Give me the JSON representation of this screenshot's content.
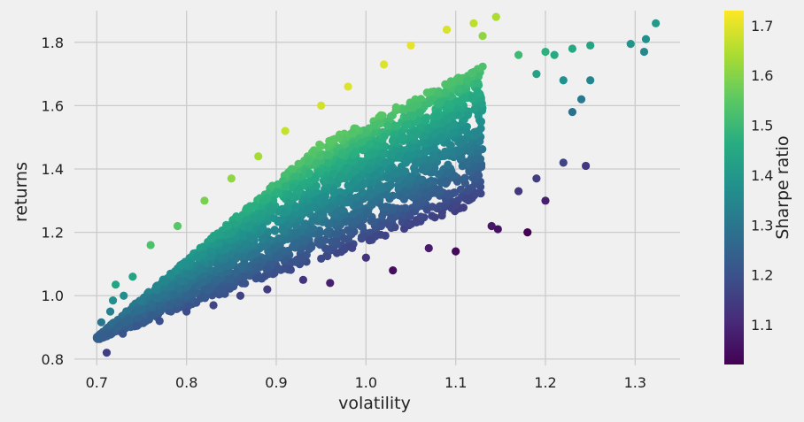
{
  "chart_data": {
    "type": "scatter",
    "title": "",
    "xlabel": "volatility",
    "ylabel": "returns",
    "colorbar_label": "Sharpe ratio",
    "colormap": "viridis",
    "xlim": [
      0.675,
      1.35
    ],
    "ylim": [
      0.78,
      1.9
    ],
    "clim": [
      1.02,
      1.73
    ],
    "x_ticks": [
      0.7,
      0.8,
      0.9,
      1.0,
      1.1,
      1.2,
      1.3
    ],
    "x_tick_labels": [
      "0.7",
      "0.8",
      "0.9",
      "1.0",
      "1.1",
      "1.2",
      "1.3"
    ],
    "y_ticks": [
      0.8,
      1.0,
      1.2,
      1.4,
      1.6,
      1.8
    ],
    "y_tick_labels": [
      "0.8",
      "1.0",
      "1.2",
      "1.4",
      "1.6",
      "1.8"
    ],
    "colorbar_ticks": [
      1.1,
      1.2,
      1.3,
      1.4,
      1.5,
      1.6,
      1.7
    ],
    "colorbar_tick_labels": [
      "1.1",
      "1.2",
      "1.3",
      "1.4",
      "1.5",
      "1.6",
      "1.7"
    ],
    "grid": true,
    "points": [
      {
        "x": 0.702,
        "y": 0.868
      },
      {
        "x": 0.709,
        "y": 0.872
      },
      {
        "x": 0.705,
        "y": 0.916
      },
      {
        "x": 0.711,
        "y": 0.82
      },
      {
        "x": 0.715,
        "y": 0.95
      },
      {
        "x": 0.718,
        "y": 0.985
      },
      {
        "x": 0.721,
        "y": 1.035
      },
      {
        "x": 0.723,
        "y": 0.9
      },
      {
        "x": 0.729,
        "y": 0.88
      },
      {
        "x": 0.73,
        "y": 1.0
      },
      {
        "x": 0.74,
        "y": 1.06
      },
      {
        "x": 0.745,
        "y": 0.905
      },
      {
        "x": 0.76,
        "y": 1.16
      },
      {
        "x": 0.77,
        "y": 0.92
      },
      {
        "x": 0.79,
        "y": 1.22
      },
      {
        "x": 0.8,
        "y": 0.95
      },
      {
        "x": 0.82,
        "y": 1.3
      },
      {
        "x": 0.83,
        "y": 0.97
      },
      {
        "x": 0.85,
        "y": 1.37
      },
      {
        "x": 0.86,
        "y": 1.0
      },
      {
        "x": 0.88,
        "y": 1.44
      },
      {
        "x": 0.89,
        "y": 1.02
      },
      {
        "x": 0.91,
        "y": 1.52
      },
      {
        "x": 0.93,
        "y": 1.05
      },
      {
        "x": 0.95,
        "y": 1.6
      },
      {
        "x": 0.96,
        "y": 1.04
      },
      {
        "x": 0.98,
        "y": 1.66
      },
      {
        "x": 1.0,
        "y": 1.12
      },
      {
        "x": 1.02,
        "y": 1.73
      },
      {
        "x": 1.03,
        "y": 1.08
      },
      {
        "x": 1.05,
        "y": 1.79
      },
      {
        "x": 1.07,
        "y": 1.15
      },
      {
        "x": 1.09,
        "y": 1.84
      },
      {
        "x": 1.1,
        "y": 1.14
      },
      {
        "x": 1.12,
        "y": 1.86
      },
      {
        "x": 1.13,
        "y": 1.82
      },
      {
        "x": 1.145,
        "y": 1.88
      },
      {
        "x": 1.14,
        "y": 1.22
      },
      {
        "x": 1.147,
        "y": 1.21
      },
      {
        "x": 1.18,
        "y": 1.2
      },
      {
        "x": 1.17,
        "y": 1.76
      },
      {
        "x": 1.19,
        "y": 1.7
      },
      {
        "x": 1.2,
        "y": 1.77
      },
      {
        "x": 1.21,
        "y": 1.76
      },
      {
        "x": 1.22,
        "y": 1.68
      },
      {
        "x": 1.23,
        "y": 1.78
      },
      {
        "x": 1.25,
        "y": 1.79
      },
      {
        "x": 1.245,
        "y": 1.41
      },
      {
        "x": 1.22,
        "y": 1.42
      },
      {
        "x": 1.2,
        "y": 1.3
      },
      {
        "x": 1.19,
        "y": 1.37
      },
      {
        "x": 1.17,
        "y": 1.33
      },
      {
        "x": 1.295,
        "y": 1.795
      },
      {
        "x": 1.31,
        "y": 1.77
      },
      {
        "x": 1.312,
        "y": 1.81
      },
      {
        "x": 1.323,
        "y": 1.86
      },
      {
        "x": 1.24,
        "y": 1.62
      },
      {
        "x": 1.25,
        "y": 1.68
      },
      {
        "x": 1.23,
        "y": 1.58
      }
    ]
  }
}
